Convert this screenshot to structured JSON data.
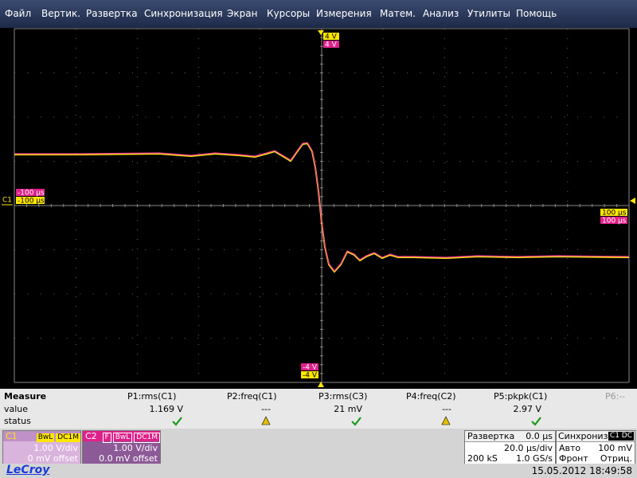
{
  "menu": {
    "items": [
      "Файл",
      "Вертик.",
      "Развертка",
      "Синхронизация",
      "Экран",
      "Курсоры",
      "Измерения",
      "Матем.",
      "Анализ",
      "Утилиты",
      "Помощь"
    ]
  },
  "screen": {
    "top_markers": [
      "4 V",
      "4 V"
    ],
    "left_markers": [
      "-100 µs",
      "-100 µs"
    ],
    "channel_label": "C1",
    "right_markers": [
      "100 µs",
      "100 µs"
    ],
    "bottom_markers": [
      "-4 V",
      "-4 V"
    ]
  },
  "measure": {
    "title": "Measure",
    "row_labels": [
      "value",
      "status"
    ],
    "columns": [
      {
        "name": "P1:rms(C1)",
        "value": "1.169 V"
      },
      {
        "name": "P2:freq(C1)",
        "value": "---"
      },
      {
        "name": "P3:rms(C3)",
        "value": "21 mV"
      },
      {
        "name": "P4:freq(C2)",
        "value": "---"
      },
      {
        "name": "P5:pkpk(C1)",
        "value": "2.97 V"
      },
      {
        "name": "P6:--"
      }
    ]
  },
  "channels": [
    {
      "label": "C1",
      "tags": [
        "BwL",
        "DC1M"
      ],
      "scale": "1.00 V/div",
      "offset": "0 mV offset"
    },
    {
      "label": "C2",
      "tags": [
        "F",
        "BwL",
        "DC1M"
      ],
      "scale": "1.00 V/div",
      "offset": "0.0 mV offset"
    }
  ],
  "timebase": {
    "title": "Развертка",
    "delay": "0.0 µs",
    "scale": "20.0 µs/div",
    "samples": "200 kS",
    "rate": "1.0 GS/s"
  },
  "trigger": {
    "title": "Синхронизация",
    "source": "C1 DC",
    "mode": "Авто",
    "level": "100 mV",
    "slope": "Фронт",
    "polarity": "Отриц."
  },
  "footer": {
    "brand": "LeCroy",
    "timestamp": "15.05.2012 18:49:58"
  }
}
